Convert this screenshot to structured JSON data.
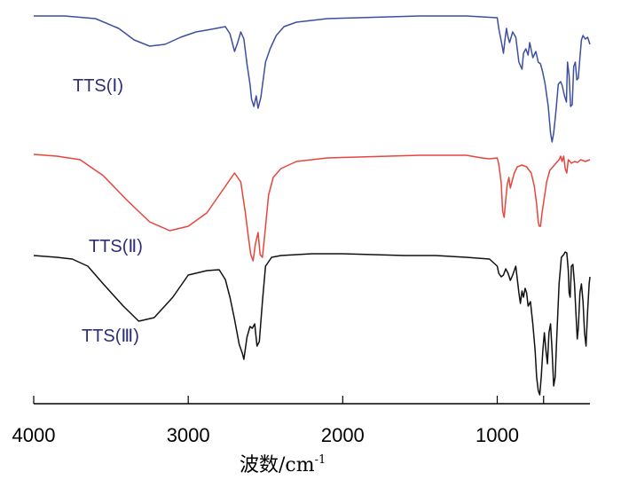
{
  "chart_data": {
    "type": "line",
    "xlabel": "波数/cm",
    "xlabel_superscript": "-1",
    "x_reversed": true,
    "xlim": [
      4000,
      400
    ],
    "x_ticks": [
      {
        "value": 4000,
        "label": "4000"
      },
      {
        "value": 3000,
        "label": "3000"
      },
      {
        "value": 2000,
        "label": "2000"
      },
      {
        "value": 1000,
        "label": "1000"
      }
    ],
    "y_units": "transmittance (offset, unlabeled)",
    "grid": false,
    "series": [
      {
        "name": "TTS(Ⅰ)",
        "color": "#3d4f9e",
        "offset": 0,
        "points": [
          [
            4000,
            18
          ],
          [
            3800,
            18
          ],
          [
            3600,
            21
          ],
          [
            3450,
            32
          ],
          [
            3350,
            45
          ],
          [
            3250,
            52
          ],
          [
            3150,
            50
          ],
          [
            3050,
            42
          ],
          [
            2950,
            36
          ],
          [
            2850,
            33
          ],
          [
            2760,
            30
          ],
          [
            2730,
            38
          ],
          [
            2700,
            58
          ],
          [
            2680,
            48
          ],
          [
            2660,
            36
          ],
          [
            2640,
            44
          ],
          [
            2620,
            72
          ],
          [
            2600,
            95
          ],
          [
            2590,
            112
          ],
          [
            2575,
            120
          ],
          [
            2560,
            108
          ],
          [
            2548,
            122
          ],
          [
            2530,
            110
          ],
          [
            2500,
            70
          ],
          [
            2470,
            55
          ],
          [
            2430,
            40
          ],
          [
            2380,
            30
          ],
          [
            2300,
            25
          ],
          [
            2100,
            21
          ],
          [
            1900,
            20
          ],
          [
            1700,
            19
          ],
          [
            1500,
            18
          ],
          [
            1200,
            18
          ],
          [
            1100,
            19
          ],
          [
            1000,
            20
          ],
          [
            990,
            32
          ],
          [
            970,
            50
          ],
          [
            960,
            60
          ],
          [
            950,
            45
          ],
          [
            940,
            32
          ],
          [
            930,
            42
          ],
          [
            920,
            48
          ],
          [
            900,
            36
          ],
          [
            880,
            42
          ],
          [
            860,
            70
          ],
          [
            840,
            78
          ],
          [
            830,
            60
          ],
          [
            815,
            55
          ],
          [
            800,
            62
          ],
          [
            790,
            48
          ],
          [
            770,
            65
          ],
          [
            750,
            58
          ],
          [
            735,
            70
          ],
          [
            720,
            72
          ],
          [
            705,
            82
          ],
          [
            690,
            95
          ],
          [
            670,
            120
          ],
          [
            655,
            150
          ],
          [
            645,
            160
          ],
          [
            635,
            150
          ],
          [
            620,
            125
          ],
          [
            605,
            95
          ],
          [
            590,
            92
          ],
          [
            580,
            96
          ],
          [
            565,
            108
          ],
          [
            552,
            115
          ],
          [
            545,
            70
          ],
          [
            535,
            85
          ],
          [
            525,
            120
          ],
          [
            515,
            118
          ],
          [
            505,
            75
          ],
          [
            495,
            70
          ],
          [
            485,
            90
          ],
          [
            475,
            88
          ],
          [
            465,
            65
          ],
          [
            455,
            45
          ],
          [
            445,
            40
          ],
          [
            430,
            44
          ],
          [
            415,
            42
          ],
          [
            400,
            50
          ]
        ]
      },
      {
        "name": "TTS(Ⅱ)",
        "color": "#e8453c",
        "offset": 0,
        "points": [
          [
            4000,
            174
          ],
          [
            3850,
            176
          ],
          [
            3700,
            180
          ],
          [
            3550,
            198
          ],
          [
            3400,
            225
          ],
          [
            3250,
            250
          ],
          [
            3120,
            260
          ],
          [
            3000,
            255
          ],
          [
            2880,
            240
          ],
          [
            2780,
            215
          ],
          [
            2700,
            195
          ],
          [
            2660,
            205
          ],
          [
            2630,
            240
          ],
          [
            2610,
            268
          ],
          [
            2595,
            287
          ],
          [
            2580,
            294
          ],
          [
            2565,
            275
          ],
          [
            2548,
            262
          ],
          [
            2535,
            287
          ],
          [
            2520,
            290
          ],
          [
            2505,
            265
          ],
          [
            2480,
            220
          ],
          [
            2450,
            200
          ],
          [
            2400,
            190
          ],
          [
            2300,
            182
          ],
          [
            2100,
            178
          ],
          [
            1900,
            177
          ],
          [
            1700,
            176
          ],
          [
            1500,
            175
          ],
          [
            1200,
            175
          ],
          [
            1100,
            178
          ],
          [
            1050,
            179
          ],
          [
            1000,
            178
          ],
          [
            990,
            185
          ],
          [
            975,
            205
          ],
          [
            965,
            238
          ],
          [
            955,
            245
          ],
          [
            945,
            225
          ],
          [
            935,
            208
          ],
          [
            925,
            200
          ],
          [
            915,
            212
          ],
          [
            905,
            205
          ],
          [
            890,
            195
          ],
          [
            870,
            188
          ],
          [
            840,
            186
          ],
          [
            810,
            188
          ],
          [
            780,
            195
          ],
          [
            760,
            210
          ],
          [
            745,
            230
          ],
          [
            735,
            250
          ],
          [
            728,
            255
          ],
          [
            720,
            255
          ],
          [
            710,
            240
          ],
          [
            700,
            228
          ],
          [
            680,
            205
          ],
          [
            660,
            192
          ],
          [
            640,
            188
          ],
          [
            620,
            184
          ],
          [
            600,
            180
          ],
          [
            590,
            176
          ],
          [
            580,
            182
          ],
          [
            570,
            176
          ],
          [
            560,
            190
          ],
          [
            550,
            195
          ],
          [
            540,
            180
          ],
          [
            520,
            184
          ],
          [
            500,
            182
          ],
          [
            480,
            183
          ],
          [
            460,
            180
          ],
          [
            430,
            182
          ],
          [
            400,
            180
          ]
        ]
      },
      {
        "name": "TTS(Ⅲ)",
        "color": "#111111",
        "offset": 0,
        "points": [
          [
            4000,
            288
          ],
          [
            3850,
            290
          ],
          [
            3750,
            292
          ],
          [
            3650,
            300
          ],
          [
            3550,
            320
          ],
          [
            3420,
            345
          ],
          [
            3320,
            362
          ],
          [
            3220,
            358
          ],
          [
            3100,
            335
          ],
          [
            3000,
            310
          ],
          [
            2880,
            305
          ],
          [
            2800,
            304
          ],
          [
            2760,
            315
          ],
          [
            2730,
            335
          ],
          [
            2700,
            360
          ],
          [
            2670,
            388
          ],
          [
            2650,
            398
          ],
          [
            2640,
            405
          ],
          [
            2620,
            380
          ],
          [
            2600,
            368
          ],
          [
            2585,
            370
          ],
          [
            2570,
            365
          ],
          [
            2555,
            390
          ],
          [
            2540,
            385
          ],
          [
            2520,
            340
          ],
          [
            2500,
            300
          ],
          [
            2460,
            290
          ],
          [
            2400,
            288
          ],
          [
            2200,
            286
          ],
          [
            2000,
            286
          ],
          [
            1800,
            287
          ],
          [
            1600,
            288
          ],
          [
            1400,
            288
          ],
          [
            1200,
            290
          ],
          [
            1050,
            292
          ],
          [
            1000,
            300
          ],
          [
            990,
            308
          ],
          [
            975,
            312
          ],
          [
            960,
            310
          ],
          [
            945,
            303
          ],
          [
            930,
            308
          ],
          [
            915,
            316
          ],
          [
            900,
            310
          ],
          [
            880,
            300
          ],
          [
            860,
            330
          ],
          [
            850,
            342
          ],
          [
            840,
            328
          ],
          [
            830,
            335
          ],
          [
            820,
            325
          ],
          [
            810,
            330
          ],
          [
            800,
            345
          ],
          [
            785,
            340
          ],
          [
            770,
            365
          ],
          [
            755,
            395
          ],
          [
            745,
            425
          ],
          [
            735,
            440
          ],
          [
            725,
            445
          ],
          [
            715,
            425
          ],
          [
            705,
            395
          ],
          [
            695,
            375
          ],
          [
            685,
            395
          ],
          [
            675,
            410
          ],
          [
            665,
            375
          ],
          [
            655,
            365
          ],
          [
            645,
            395
          ],
          [
            635,
            435
          ],
          [
            625,
            425
          ],
          [
            615,
            380
          ],
          [
            600,
            320
          ],
          [
            585,
            290
          ],
          [
            570,
            287
          ],
          [
            560,
            284
          ],
          [
            550,
            285
          ],
          [
            540,
            305
          ],
          [
            535,
            330
          ],
          [
            528,
            335
          ],
          [
            520,
            300
          ],
          [
            510,
            298
          ],
          [
            500,
            320
          ],
          [
            490,
            355
          ],
          [
            482,
            382
          ],
          [
            475,
            370
          ],
          [
            465,
            330
          ],
          [
            455,
            320
          ],
          [
            445,
            340
          ],
          [
            435,
            375
          ],
          [
            425,
            390
          ],
          [
            415,
            350
          ],
          [
            405,
            320
          ],
          [
            400,
            312
          ]
        ]
      }
    ]
  },
  "labels": {
    "s1": "TTS(Ⅰ)",
    "s2": "TTS(Ⅱ)",
    "s3": "TTS(Ⅲ)"
  }
}
